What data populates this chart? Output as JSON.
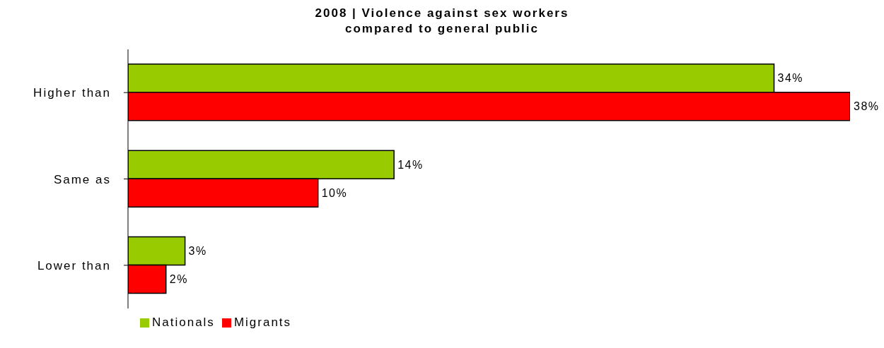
{
  "chart_data": {
    "type": "bar",
    "orientation": "horizontal",
    "title": "2008 | Violence against sex workers\ncompared to general public",
    "categories": [
      "Higher than",
      "Same as",
      "Lower than"
    ],
    "xlim": [
      0,
      38
    ],
    "series": [
      {
        "name": "Nationals",
        "color": "#99cc00",
        "values": [
          34,
          14,
          3
        ],
        "value_labels": [
          "34%",
          "14%",
          "3%"
        ]
      },
      {
        "name": "Migrants",
        "color": "#ff0000",
        "values": [
          38,
          10,
          2
        ],
        "value_labels": [
          "38%",
          "10%",
          "2%"
        ]
      }
    ],
    "legend": "bottom left",
    "grid": false
  }
}
